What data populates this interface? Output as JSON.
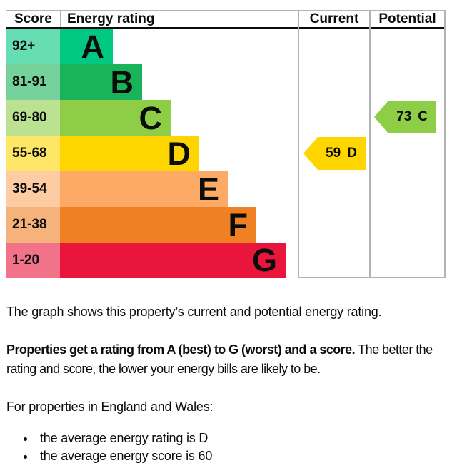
{
  "chart_data": {
    "type": "bar",
    "title": "Energy rating",
    "columns": {
      "score": "Score",
      "rating": "Energy rating",
      "current": "Current",
      "potential": "Potential"
    },
    "bands": [
      {
        "rating": "A",
        "score_range": "92+",
        "color": "#00c781",
        "tint": "#66ddb3"
      },
      {
        "rating": "B",
        "score_range": "81-91",
        "color": "#19b459",
        "tint": "#75d29b"
      },
      {
        "rating": "C",
        "score_range": "69-80",
        "color": "#8dce46",
        "tint": "#bbe290"
      },
      {
        "rating": "D",
        "score_range": "55-68",
        "color": "#ffd500",
        "tint": "#ffe666"
      },
      {
        "rating": "E",
        "score_range": "39-54",
        "color": "#fcaa65",
        "tint": "#fdcca3"
      },
      {
        "rating": "F",
        "score_range": "21-38",
        "color": "#ef8023",
        "tint": "#f5b37b"
      },
      {
        "rating": "G",
        "score_range": "1-20",
        "color": "#e9153b",
        "tint": "#f27389"
      }
    ],
    "current": {
      "score": "59",
      "rating": "D",
      "color": "#ffd500",
      "band_index": 3
    },
    "potential": {
      "score": "73",
      "rating": "C",
      "color": "#8dce46",
      "band_index": 2
    },
    "layout": {
      "legend_position": "none",
      "grid": "off",
      "border_color": "#b1b4b6"
    }
  },
  "text": {
    "intro": "The graph shows this property’s current and potential energy rating.",
    "explain_bold": "Properties get a rating from A (best) to G (worst) and a score.",
    "explain_rest": " The better the rating and score, the lower your energy bills are likely to be.",
    "region_heading": "For properties in England and Wales:",
    "bullets": [
      "the average energy rating is D",
      "the average energy score is 60"
    ]
  }
}
